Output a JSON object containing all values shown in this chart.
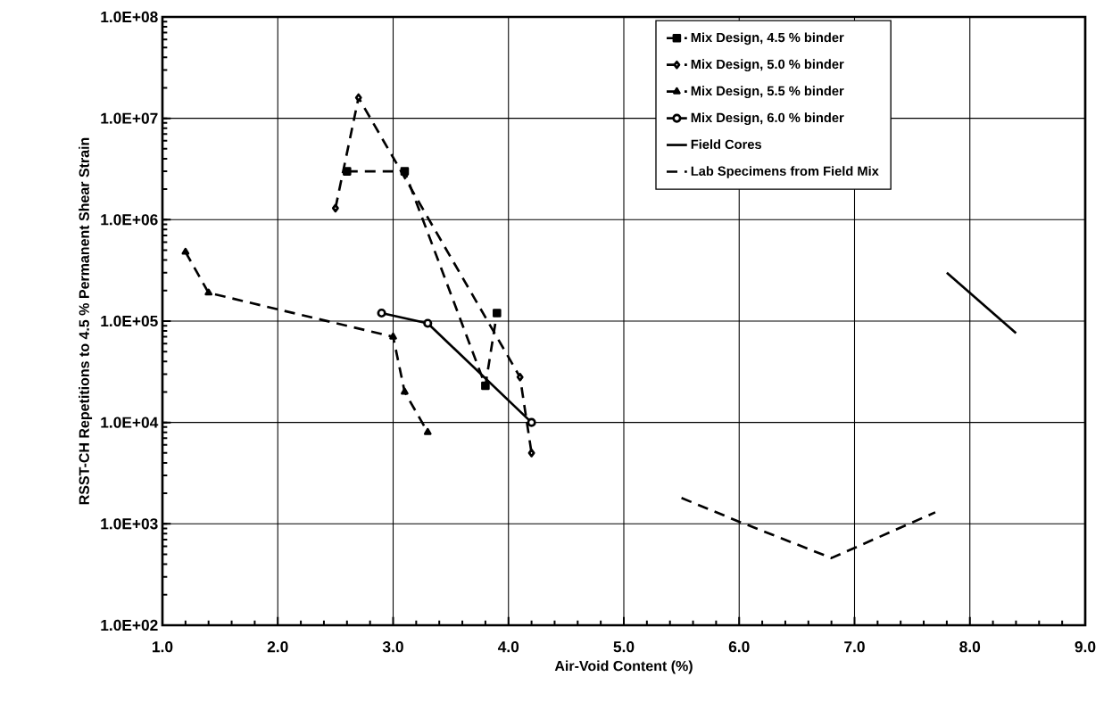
{
  "chart_data": {
    "type": "line",
    "xlabel": "Air-Void Content (%)",
    "ylabel": "RSST-CH Repetitions to 4.5 % Permanent Shear Strain",
    "log": "y",
    "xlim": [
      1,
      9
    ],
    "ylim": [
      100,
      100000000
    ],
    "xticks": [
      {
        "value": 1,
        "label": "1.0"
      },
      {
        "value": 2,
        "label": "2.0"
      },
      {
        "value": 3,
        "label": "3.0"
      },
      {
        "value": 4,
        "label": "4.0"
      },
      {
        "value": 5,
        "label": "5.0"
      },
      {
        "value": 6,
        "label": "6.0"
      },
      {
        "value": 7,
        "label": "7.0"
      },
      {
        "value": 8,
        "label": "8.0"
      },
      {
        "value": 9,
        "label": "9.0"
      }
    ],
    "yticks": [
      {
        "value": 100,
        "label": "1.0E+02"
      },
      {
        "value": 1000,
        "label": "1.0E+03"
      },
      {
        "value": 10000,
        "label": "1.0E+04"
      },
      {
        "value": 100000,
        "label": "1.0E+05"
      },
      {
        "value": 1000000,
        "label": "1.0E+06"
      },
      {
        "value": 10000000,
        "label": "1.0E+07"
      },
      {
        "value": 100000000,
        "label": "1.0E+08"
      }
    ],
    "grid": true,
    "legend": "top right",
    "series": [
      {
        "name": "Mix Design, 4.5 % binder",
        "color": "#000000",
        "marker": "square",
        "line_style": "dashed",
        "x": [
          2.6,
          3.1,
          3.8,
          3.9
        ],
        "values": [
          3000000,
          3000000,
          23000,
          120000
        ]
      },
      {
        "name": "Mix Design, 5.0 % binder",
        "color": "#000000",
        "marker": "diamond",
        "line_style": "dashed",
        "x": [
          2.5,
          2.7,
          4.1,
          4.2
        ],
        "values": [
          1300000,
          16000000,
          28000,
          5000
        ]
      },
      {
        "name": "Mix Design, 5.5 % binder",
        "color": "#000000",
        "marker": "triangle",
        "line_style": "dashed",
        "x": [
          1.2,
          1.4,
          3.0,
          3.1,
          3.3
        ],
        "values": [
          480000,
          190000,
          70000,
          20000,
          8000
        ]
      },
      {
        "name": "Mix Design, 6.0 % binder",
        "color": "#000000",
        "marker": "circle",
        "line_style": "solid",
        "x": [
          2.9,
          3.3,
          4.2
        ],
        "values": [
          120000,
          95000,
          10000
        ]
      },
      {
        "name": "Field Cores",
        "color": "#000000",
        "marker": "none",
        "line_style": "solid",
        "x": [
          7.8,
          8.4
        ],
        "values": [
          300000,
          76000
        ]
      },
      {
        "name": "Lab Specimens from Field Mix",
        "color": "#000000",
        "marker": "none",
        "line_style": "dashed",
        "x": [
          5.5,
          6.0,
          6.8,
          7.7
        ],
        "values": [
          1800,
          1050,
          460,
          1300
        ]
      }
    ]
  }
}
